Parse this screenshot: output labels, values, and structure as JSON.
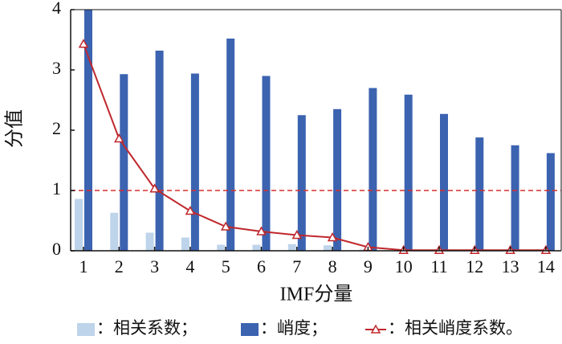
{
  "chart_data": {
    "type": "bar",
    "x_label": "IMF分量",
    "y_label": "分值",
    "categories": [
      1,
      2,
      3,
      4,
      5,
      6,
      7,
      8,
      9,
      10,
      11,
      12,
      13,
      14
    ],
    "series": [
      {
        "name": "：相关系数；",
        "color": "#bed4ea",
        "values": [
          0.86,
          0.63,
          0.3,
          0.22,
          0.1,
          0.1,
          0.11,
          0.09,
          0.02,
          0.01,
          0.01,
          0.01,
          0.01,
          0.01
        ]
      },
      {
        "name": "：峭度；",
        "color": "#3b63b0",
        "values": [
          4.0,
          2.93,
          3.32,
          2.94,
          3.52,
          2.9,
          2.25,
          2.35,
          2.7,
          2.59,
          2.27,
          1.88,
          1.75,
          1.62
        ]
      },
      {
        "name": "：相关峭度系数。",
        "color": "#c0282d",
        "type": "line",
        "values": [
          3.43,
          1.86,
          1.03,
          0.66,
          0.4,
          0.32,
          0.26,
          0.22,
          0.06,
          0.01,
          0.01,
          0.01,
          0.01,
          0.01
        ]
      }
    ],
    "threshold": 1,
    "threshold_color": "#d9302c",
    "ylim": [
      0,
      4
    ],
    "yticks": [
      0,
      1,
      2,
      3,
      4
    ]
  }
}
